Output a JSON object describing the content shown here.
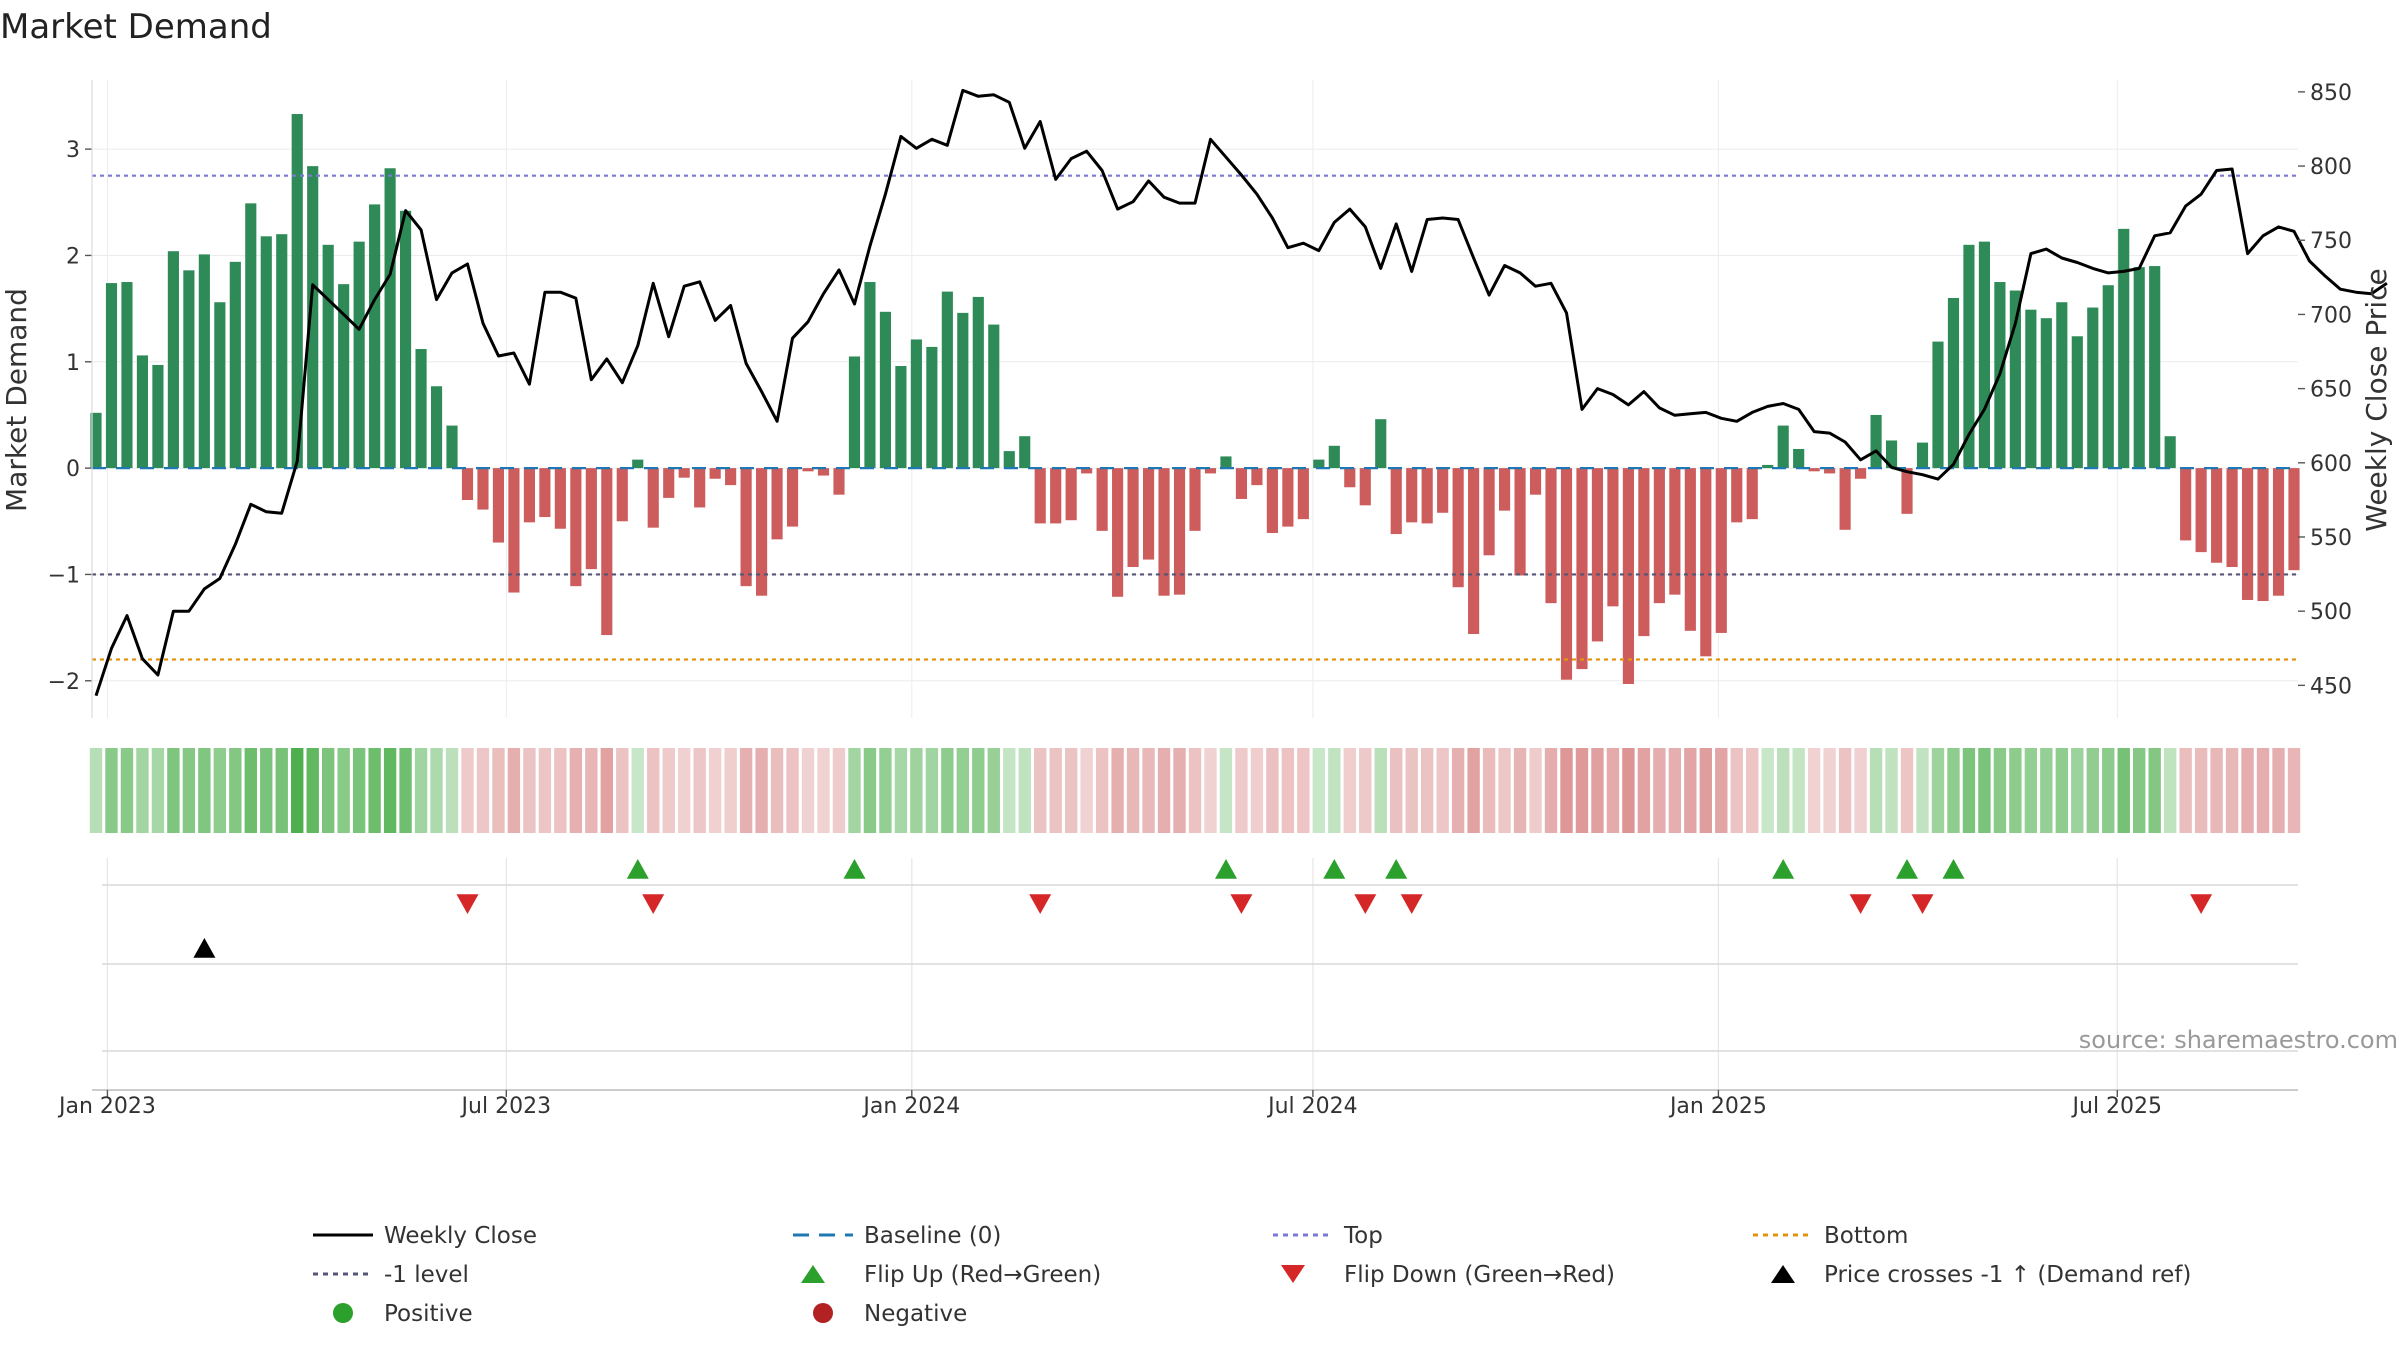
{
  "chart_data": {
    "type": "bar",
    "title": "Market Demand",
    "ylabel_left": "Market Demand",
    "ylabel_right": "Weekly Close Price",
    "source": "source: sharemaestro.com",
    "ylim_left": [
      -2.35,
      3.65
    ],
    "ylim_right": [
      428,
      858
    ],
    "yticks_left": [
      -2,
      -1,
      0,
      1,
      2,
      3
    ],
    "yticks_left_labels": [
      "−2",
      "−1",
      "0",
      "1",
      "2",
      "3"
    ],
    "yticks_right": [
      450,
      500,
      550,
      600,
      650,
      700,
      750,
      800,
      850
    ],
    "yticks_right_labels": [
      "450",
      "500",
      "550",
      "600",
      "650",
      "700",
      "750",
      "800",
      "850"
    ],
    "x_start_date": "2022-12-25",
    "x_end_date": "2025-09-21",
    "x_ticks": [
      {
        "date": "2023-01-01",
        "label": "Jan 2023"
      },
      {
        "date": "2023-07-01",
        "label": "Jul 2023"
      },
      {
        "date": "2024-01-01",
        "label": "Jan 2024"
      },
      {
        "date": "2024-07-01",
        "label": "Jul 2024"
      },
      {
        "date": "2025-01-01",
        "label": "Jan 2025"
      },
      {
        "date": "2025-07-01",
        "label": "Jul 2025"
      }
    ],
    "levels": {
      "top": 2.75,
      "bottom": -1.8,
      "minus_one": -1,
      "baseline": 0
    },
    "demand": [
      0.52,
      1.74,
      1.75,
      1.06,
      0.97,
      2.04,
      1.86,
      2.01,
      1.56,
      1.94,
      2.49,
      2.18,
      2.2,
      3.33,
      2.84,
      2.1,
      1.73,
      2.13,
      2.48,
      2.82,
      2.42,
      1.12,
      0.77,
      0.4,
      -0.3,
      -0.39,
      -0.7,
      -1.17,
      -0.51,
      -0.46,
      -0.57,
      -1.11,
      -0.95,
      -1.57,
      -0.5,
      0.08,
      -0.56,
      -0.28,
      -0.09,
      -0.37,
      -0.1,
      -0.16,
      -1.11,
      -1.2,
      -0.67,
      -0.55,
      -0.03,
      -0.07,
      -0.25,
      1.05,
      1.75,
      1.47,
      0.96,
      1.21,
      1.14,
      1.66,
      1.46,
      1.61,
      1.35,
      0.16,
      0.3,
      -0.52,
      -0.52,
      -0.49,
      -0.05,
      -0.59,
      -1.21,
      -0.93,
      -0.86,
      -1.2,
      -1.19,
      -0.59,
      -0.05,
      0.11,
      -0.29,
      -0.16,
      -0.61,
      -0.55,
      -0.48,
      0.08,
      0.21,
      -0.18,
      -0.35,
      0.46,
      -0.62,
      -0.51,
      -0.52,
      -0.42,
      -1.12,
      -1.56,
      -0.82,
      -0.4,
      -1.01,
      -0.25,
      -1.27,
      -1.99,
      -1.89,
      -1.63,
      -1.3,
      -2.03,
      -1.58,
      -1.27,
      -1.19,
      -1.53,
      -1.77,
      -1.55,
      -0.51,
      -0.48,
      0.03,
      0.4,
      0.18,
      -0.03,
      -0.05,
      -0.58,
      -0.1,
      0.5,
      0.26,
      -0.43,
      0.24,
      1.19,
      1.6,
      2.1,
      2.13,
      1.75,
      1.67,
      1.49,
      1.41,
      1.56,
      1.24,
      1.51,
      1.72,
      2.25,
      1.89,
      1.9,
      0.3,
      -0.68,
      -0.79,
      -0.89,
      -0.93,
      -1.24,
      -1.25,
      -1.2,
      -0.96
    ],
    "close": [
      443,
      475,
      497,
      468,
      457,
      500,
      500,
      515,
      522,
      545,
      572,
      567,
      566,
      601,
      720,
      710,
      700,
      690,
      710,
      727,
      770,
      757,
      710,
      728,
      734,
      694,
      672,
      674,
      653,
      715,
      715,
      711,
      656,
      670,
      654,
      679,
      721,
      685,
      719,
      722,
      696,
      706,
      667,
      648,
      628,
      684,
      695,
      714,
      730,
      707,
      746,
      781,
      820,
      812,
      818,
      814,
      851,
      847,
      848,
      843,
      812,
      830,
      791,
      805,
      810,
      797,
      771,
      776,
      790,
      779,
      775,
      775,
      818,
      806,
      794,
      781,
      765,
      745,
      748,
      743,
      762,
      771,
      759,
      731,
      761,
      729,
      764,
      765,
      764,
      738,
      713,
      733,
      728,
      719,
      721,
      701,
      636,
      650,
      646,
      639,
      648,
      637,
      632,
      633,
      634,
      630,
      628,
      634,
      638,
      640,
      636,
      621,
      620,
      614,
      602,
      608,
      597,
      594,
      592,
      589,
      599,
      619,
      636,
      660,
      694,
      741,
      744,
      738,
      735,
      731,
      728,
      729,
      731,
      753,
      755,
      773,
      781,
      797,
      798,
      741,
      753,
      759,
      756,
      736,
      726,
      717,
      715,
      714,
      721
    ]
  },
  "flip_up_indices": [
    35,
    49,
    73,
    80,
    84,
    109,
    117,
    120
  ],
  "flip_down_indices": [
    24,
    36,
    61,
    74,
    82,
    85,
    114,
    118,
    136
  ],
  "price_cross_indices": [
    7
  ],
  "legend": [
    {
      "label": "Weekly Close",
      "color": "#000000"
    },
    {
      "label": "Baseline (0)",
      "color": "#1f77b4"
    },
    {
      "label": "Top",
      "color": "#7a7ad6"
    },
    {
      "label": "Bottom",
      "color": "#e3940f"
    },
    {
      "label": "-1 level",
      "color": "#555577"
    },
    {
      "label": "Flip Up (Red→Green)",
      "color": "#2ca02c"
    },
    {
      "label": "Flip Down (Green→Red)",
      "color": "#d62728"
    },
    {
      "label": "Price crosses -1 ↑ (Demand ref)",
      "color": "#000000"
    },
    {
      "label": "Positive",
      "color": "#2ca02c"
    },
    {
      "label": "Negative",
      "color": "#b22222"
    }
  ],
  "colors": {
    "positive_bar": "#2e8b57",
    "negative_bar": "#cd5c5c"
  }
}
